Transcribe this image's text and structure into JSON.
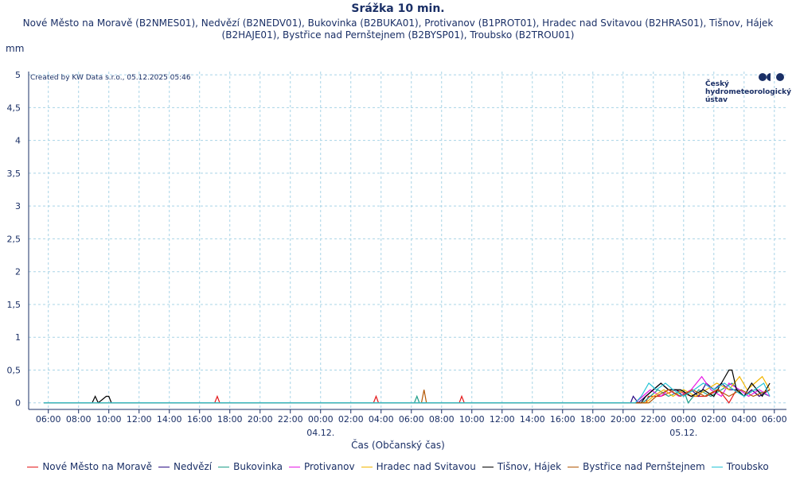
{
  "chart_data": {
    "type": "line",
    "title": "Srážka 10 min.",
    "subtitle": "Nové Město na Moravě (B2NMES01), Nedvězí (B2NEDV01), Bukovinka (B2BUKA01), Protivanov (B1PROT01), Hradec nad Svitavou (B2HRAS01), Tišnov, Hájek (B2HAJE01), Bystřice nad Pernštejnem (B2BYSP01), Troubsko (B2TROU01)",
    "y_label": "mm",
    "x_label": "Čas (Občanský čas)",
    "credit": "Created by KW Data s.r.o., 05.12.2025 05:46",
    "logo_lines": [
      "Český",
      "hydrometeorologický",
      "ústav"
    ],
    "grid": true,
    "legend_position": "bottom",
    "xlim": [
      -19.3,
      30.8
    ],
    "ylim": [
      -0.1,
      5.05
    ],
    "xticks": [
      {
        "value": -18,
        "label": "06:00"
      },
      {
        "value": -16,
        "label": "08:00"
      },
      {
        "value": -14,
        "label": "10:00"
      },
      {
        "value": -12,
        "label": "12:00"
      },
      {
        "value": -10,
        "label": "14:00"
      },
      {
        "value": -8,
        "label": "16:00"
      },
      {
        "value": -6,
        "label": "18:00"
      },
      {
        "value": -4,
        "label": "20:00"
      },
      {
        "value": -2,
        "label": "22:00"
      },
      {
        "value": 0,
        "label": "00:00"
      },
      {
        "value": 2,
        "label": "02:00"
      },
      {
        "value": 4,
        "label": "04:00"
      },
      {
        "value": 6,
        "label": "06:00"
      },
      {
        "value": 8,
        "label": "08:00"
      },
      {
        "value": 10,
        "label": "10:00"
      },
      {
        "value": 12,
        "label": "12:00"
      },
      {
        "value": 14,
        "label": "14:00"
      },
      {
        "value": 16,
        "label": "16:00"
      },
      {
        "value": 18,
        "label": "18:00"
      },
      {
        "value": 20,
        "label": "20:00"
      },
      {
        "value": 22,
        "label": "22:00"
      },
      {
        "value": 24,
        "label": "00:00"
      },
      {
        "value": 26,
        "label": "02:00"
      },
      {
        "value": 28,
        "label": "04:00"
      },
      {
        "value": 30,
        "label": "06:00"
      }
    ],
    "date_labels": [
      {
        "value": 0,
        "label": "04.12."
      },
      {
        "value": 24,
        "label": "05.12."
      }
    ],
    "yticks": [
      0,
      {
        "value": 0.5,
        "label": "0,5"
      },
      1,
      {
        "value": 1.5,
        "label": "1,5"
      },
      2,
      {
        "value": 2.5,
        "label": "2,5"
      },
      3,
      {
        "value": 3.5,
        "label": "3,5"
      },
      4,
      {
        "value": 4.5,
        "label": "4,5"
      },
      5
    ],
    "series": [
      {
        "name": "Nové Město na Moravě",
        "color": "#e41a1c",
        "x": [
          -18.3,
          -7,
          -6.83,
          -6.67,
          3.5,
          3.67,
          3.83,
          9.17,
          9.33,
          9.5,
          21.5,
          21.67,
          22.5,
          23.5,
          24.5,
          25.5,
          26.33,
          27,
          27.5,
          28,
          28.5,
          29,
          29.7
        ],
        "values": [
          0,
          0,
          0.1,
          0,
          0,
          0.1,
          0,
          0,
          0.1,
          0,
          0,
          0.1,
          0.1,
          0.2,
          0.1,
          0.1,
          0.2,
          0,
          0.2,
          0.1,
          0.2,
          0.1,
          0.2
        ]
      },
      {
        "name": "Nedvězí",
        "color": "#2b0f86",
        "x": [
          -18.3,
          20.5,
          20.67,
          21,
          21.5,
          22,
          22.5,
          23,
          23.5,
          24,
          24.5,
          25,
          25.5,
          26,
          26.5,
          27,
          27.5,
          28,
          28.5,
          29,
          29.7
        ],
        "values": [
          0,
          0,
          0.1,
          0,
          0.1,
          0.2,
          0.3,
          0.2,
          0.2,
          0.1,
          0.2,
          0.1,
          0.3,
          0.2,
          0.3,
          0.2,
          0.2,
          0.1,
          0.2,
          0.1,
          0.2
        ]
      },
      {
        "name": "Bukovinka",
        "color": "#1f9e89",
        "x": [
          -18.3,
          6.2,
          6.37,
          6.53,
          21.3,
          21.8,
          22.3,
          23,
          24,
          24.3,
          25,
          25.8,
          26.5,
          27.2,
          28,
          28.7,
          29.7
        ],
        "values": [
          0,
          0,
          0.1,
          0,
          0,
          0.1,
          0.2,
          0.1,
          0.2,
          0,
          0.2,
          0.1,
          0.2,
          0.3,
          0.1,
          0.2,
          0.1
        ]
      },
      {
        "name": "Protivanov",
        "color": "#e619e6",
        "x": [
          -18.3,
          20.8,
          21.3,
          21.8,
          22.5,
          23,
          23.7,
          24.5,
          25.2,
          25.8,
          26.5,
          27,
          27.7,
          28.3,
          29,
          29.7
        ],
        "values": [
          0,
          0,
          0.1,
          0.2,
          0.1,
          0.2,
          0.1,
          0.2,
          0.4,
          0.2,
          0.1,
          0.3,
          0.2,
          0.1,
          0.2,
          0.1
        ]
      },
      {
        "name": "Hradec nad Svitavou",
        "color": "#f2b600",
        "x": [
          -18.3,
          21.5,
          22,
          22.7,
          23.3,
          24,
          24.8,
          25.5,
          26.2,
          27,
          27.7,
          28.2,
          28.7,
          29.2,
          29.7
        ],
        "values": [
          0,
          0,
          0.1,
          0.2,
          0.1,
          0.2,
          0.1,
          0.2,
          0.3,
          0.2,
          0.4,
          0.2,
          0.3,
          0.4,
          0.2
        ]
      },
      {
        "name": "Tišnov, Hájek",
        "color": "#000000",
        "x": [
          -18.3,
          -15.1,
          -14.9,
          -14.7,
          -14.17,
          -14,
          -13.83,
          21.2,
          21.5,
          22,
          22.5,
          23,
          23.8,
          24.5,
          25.3,
          26,
          26.5,
          27,
          27.2,
          27.5,
          28,
          28.5,
          29.2,
          29.7
        ],
        "values": [
          0,
          0,
          0.1,
          0,
          0.1,
          0.1,
          0,
          0,
          0.1,
          0.2,
          0.3,
          0.2,
          0.2,
          0.1,
          0.2,
          0.1,
          0.3,
          0.5,
          0.5,
          0.2,
          0.1,
          0.3,
          0.1,
          0.3
        ]
      },
      {
        "name": "Bystřice nad Pernštejnem",
        "color": "#b35806",
        "x": [
          -18.3,
          6.67,
          6.84,
          7,
          21.7,
          22.2,
          23,
          23.8,
          24.6,
          25.4,
          26.2,
          27,
          27.8,
          28.6,
          29.7
        ],
        "values": [
          0,
          0,
          0.2,
          0,
          0,
          0.1,
          0.2,
          0.1,
          0.2,
          0.1,
          0.2,
          0.1,
          0.2,
          0.1,
          0.2
        ]
      },
      {
        "name": "Troubsko",
        "color": "#27c4d6",
        "x": [
          -18.3,
          20.8,
          21.2,
          21.7,
          22.2,
          22.8,
          23.3,
          24,
          24.7,
          25.3,
          26,
          26.7,
          27.3,
          28,
          28.7,
          29.3,
          29.7
        ],
        "values": [
          0,
          0,
          0.1,
          0.3,
          0.2,
          0.3,
          0.2,
          0.1,
          0.2,
          0.3,
          0.2,
          0.3,
          0.2,
          0.1,
          0.2,
          0.3,
          0.1
        ]
      }
    ]
  }
}
